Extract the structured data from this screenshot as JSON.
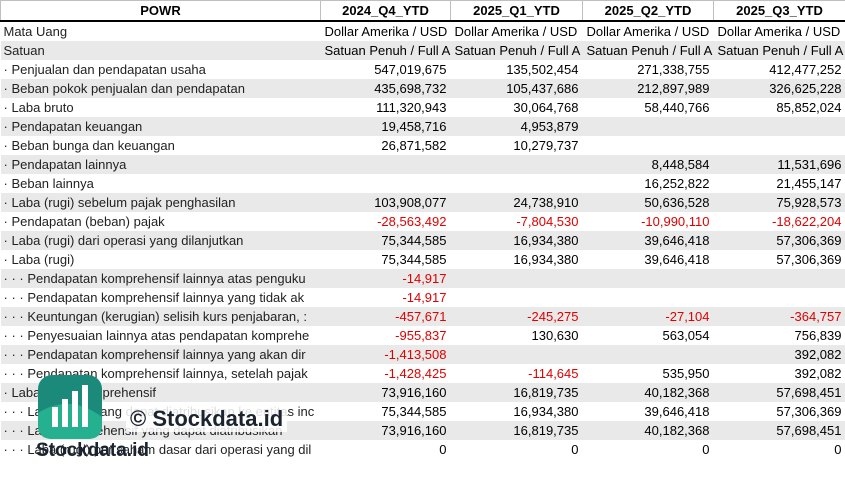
{
  "header": [
    "POWR",
    "2024_Q4_YTD",
    "2025_Q1_YTD",
    "2025_Q2_YTD",
    "2025_Q3_YTD"
  ],
  "rows": [
    [
      "Mata Uang",
      "Dollar Amerika / USD",
      "Dollar Amerika / USD",
      "Dollar Amerika / USD",
      "Dollar Amerika / USD"
    ],
    [
      "Satuan",
      "Satuan Penuh / Full A",
      "Satuan Penuh / Full A",
      "Satuan Penuh / Full A",
      "Satuan Penuh / Full A"
    ],
    [
      "· Penjualan dan pendapatan usaha",
      "547,019,675",
      "135,502,454",
      "271,338,755",
      "412,477,252"
    ],
    [
      "· Beban pokok penjualan dan pendapatan",
      "435,698,732",
      "105,437,686",
      "212,897,989",
      "326,625,228"
    ],
    [
      "· Laba bruto",
      "111,320,943",
      "30,064,768",
      "58,440,766",
      "85,852,024"
    ],
    [
      "· Pendapatan keuangan",
      "19,458,716",
      "4,953,879",
      null,
      null
    ],
    [
      "· Beban bunga dan keuangan",
      "26,871,582",
      "10,279,737",
      null,
      null
    ],
    [
      "· Pendapatan lainnya",
      null,
      null,
      "8,448,584",
      "11,531,696"
    ],
    [
      "· Beban lainnya",
      null,
      null,
      "16,252,822",
      "21,455,147"
    ],
    [
      "· Laba (rugi) sebelum pajak penghasilan",
      "103,908,077",
      "24,738,910",
      "50,636,528",
      "75,928,573"
    ],
    [
      "· Pendapatan (beban) pajak",
      "-28,563,492",
      "-7,804,530",
      "-10,990,110",
      "-18,622,204"
    ],
    [
      "· Laba (rugi) dari operasi yang dilanjutkan",
      "75,344,585",
      "16,934,380",
      "39,646,418",
      "57,306,369"
    ],
    [
      "· Laba (rugi)",
      "75,344,585",
      "16,934,380",
      "39,646,418",
      "57,306,369"
    ],
    [
      "· · · Pendapatan komprehensif lainnya atas penguku",
      "-14,917",
      null,
      null,
      null
    ],
    [
      "· · · Pendapatan komprehensif lainnya yang tidak ak",
      "-14,917",
      null,
      null,
      null
    ],
    [
      "· · · Keuntungan (kerugian) selisih kurs penjabaran, :",
      "-457,671",
      "-245,275",
      "-27,104",
      "-364,757"
    ],
    [
      "· · · Penyesuaian lainnya atas pendapatan komprehe",
      "-955,837",
      "130,630",
      "563,054",
      "756,839"
    ],
    [
      "· · · Pendapatan komprehensif lainnya yang akan dir",
      "-1,413,508",
      null,
      null,
      "392,082"
    ],
    [
      "· · · Pendapatan komprehensif lainnya, setelah pajak",
      "-1,428,425",
      "-114,645",
      "535,950",
      "392,082"
    ],
    [
      "· Laba (rugi) komprehensif",
      "73,916,160",
      "16,819,735",
      "40,182,368",
      "57,698,451"
    ],
    [
      "· · · Laba (rugi) yang dapat diatribusikan ke entitas inc",
      "75,344,585",
      "16,934,380",
      "39,646,418",
      "57,306,369"
    ],
    [
      "· · · Laba komprehensif yang dapat diatribusikan",
      "73,916,160",
      "16,819,735",
      "40,182,368",
      "57,698,451"
    ],
    [
      "· · · Laba (rugi) per saham dasar dari operasi yang dil",
      "0",
      "0",
      "0",
      "0"
    ]
  ],
  "watermark": {
    "text": "© Stockdata.id",
    "logo_text": "Stockdata.id"
  }
}
